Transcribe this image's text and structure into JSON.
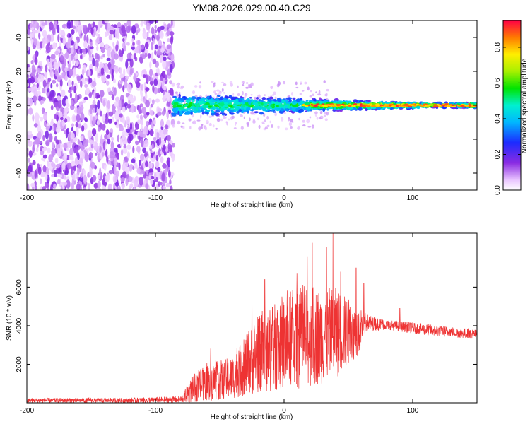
{
  "title": "YM08.2026.029.00.40.C29",
  "chart_data": [
    {
      "type": "heatmap",
      "xlabel": "Height of straight line (km)",
      "ylabel": "Frequency (Hz)",
      "xlim": [
        -200,
        150
      ],
      "ylim": [
        -50,
        50
      ],
      "x_ticks": [
        -200,
        -100,
        0,
        100
      ],
      "y_ticks": [
        -40,
        -20,
        0,
        20,
        40
      ],
      "colorbar": {
        "label": "Normalized spectral amplitude",
        "range": [
          0,
          0.95
        ],
        "ticks": [
          0.0,
          0.2,
          0.4,
          0.6,
          0.8
        ],
        "tick_labels": [
          "0.0",
          "0.2",
          "0.4",
          "0.6",
          "0.8"
        ]
      },
      "regions": [
        {
          "x_range": [
            -200,
            -86
          ],
          "freq_range": [
            -50,
            50
          ],
          "amplitude": "0.05-0.25"
        },
        {
          "x_range": [
            -86,
            60
          ],
          "freq_range": [
            -6,
            6
          ],
          "amplitude": "0.2-0.6"
        },
        {
          "x_range": [
            20,
            150
          ],
          "freq_range": [
            -1.5,
            1.5
          ],
          "amplitude": "0.8-0.95"
        }
      ]
    },
    {
      "type": "line",
      "xlabel": "Height of straight line (km)",
      "ylabel": "SNR (10 * v/v)",
      "xlim": [
        -200,
        150
      ],
      "ylim": [
        0,
        8800
      ],
      "x_ticks": [
        -200,
        -100,
        0,
        100
      ],
      "y_ticks": [
        2000,
        4000,
        6000
      ],
      "series": [
        {
          "color": "#ee3333",
          "envelope": [
            {
              "x": -200,
              "low": 0,
              "high": 250
            },
            {
              "x": -120,
              "low": 0,
              "high": 250
            },
            {
              "x": -80,
              "low": 0,
              "high": 350
            },
            {
              "x": -72,
              "low": 0,
              "high": 1300
            },
            {
              "x": -60,
              "low": 100,
              "high": 2000
            },
            {
              "x": -40,
              "low": 200,
              "high": 2400
            },
            {
              "x": -20,
              "low": 500,
              "high": 4500
            },
            {
              "x": 0,
              "low": 600,
              "high": 5500
            },
            {
              "x": 20,
              "low": 800,
              "high": 6000
            },
            {
              "x": 40,
              "low": 1200,
              "high": 6000
            },
            {
              "x": 58,
              "low": 2500,
              "high": 5000
            },
            {
              "x": 64,
              "low": 3700,
              "high": 4600
            },
            {
              "x": 80,
              "low": 3800,
              "high": 4300
            },
            {
              "x": 110,
              "low": 3500,
              "high": 4100
            },
            {
              "x": 150,
              "low": 3300,
              "high": 3800
            }
          ],
          "spikes": [
            {
              "x": -57,
              "y": 2800
            },
            {
              "x": -25,
              "y": 7200
            },
            {
              "x": -15,
              "y": 6400
            },
            {
              "x": 10,
              "y": 6700
            },
            {
              "x": 18,
              "y": 7600
            },
            {
              "x": 22,
              "y": 8300
            },
            {
              "x": 33,
              "y": 8100
            },
            {
              "x": 38,
              "y": 8800
            },
            {
              "x": 44,
              "y": 6800
            },
            {
              "x": 56,
              "y": 7000
            },
            {
              "x": 62,
              "y": 6200
            },
            {
              "x": 90,
              "y": 4900
            }
          ]
        }
      ]
    }
  ]
}
